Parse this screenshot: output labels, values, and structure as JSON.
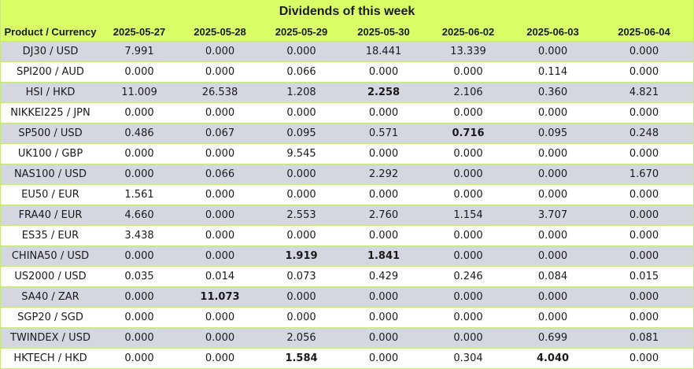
{
  "title": "Dividends of this week",
  "columns": [
    "Product / Currency",
    "2025-05-27",
    "2025-05-28",
    "2025-05-29",
    "2025-05-30",
    "2025-06-02",
    "2025-06-03",
    "2025-06-04"
  ],
  "rows": [
    {
      "product": "DJ30 / USD",
      "values": [
        "7.991",
        "0.000",
        "0.000",
        "18.441",
        "13.339",
        "0.000",
        "0.000"
      ],
      "bold": []
    },
    {
      "product": "SPI200 / AUD",
      "values": [
        "0.000",
        "0.000",
        "0.066",
        "0.000",
        "0.000",
        "0.114",
        "0.000"
      ],
      "bold": []
    },
    {
      "product": "HSI / HKD",
      "values": [
        "11.009",
        "26.538",
        "1.208",
        "2.258",
        "2.106",
        "0.360",
        "4.821"
      ],
      "bold": [
        3
      ]
    },
    {
      "product": "NIKKEI225 / JPN",
      "values": [
        "0.000",
        "0.000",
        "0.000",
        "0.000",
        "0.000",
        "0.000",
        "0.000"
      ],
      "bold": []
    },
    {
      "product": "SP500 / USD",
      "values": [
        "0.486",
        "0.067",
        "0.095",
        "0.571",
        "0.716",
        "0.095",
        "0.248"
      ],
      "bold": [
        4
      ]
    },
    {
      "product": "UK100 / GBP",
      "values": [
        "0.000",
        "0.000",
        "9.545",
        "0.000",
        "0.000",
        "0.000",
        "0.000"
      ],
      "bold": []
    },
    {
      "product": "NAS100 / USD",
      "values": [
        "0.000",
        "0.066",
        "0.000",
        "2.292",
        "0.000",
        "0.000",
        "1.670"
      ],
      "bold": []
    },
    {
      "product": "EU50 / EUR",
      "values": [
        "1.561",
        "0.000",
        "0.000",
        "0.000",
        "0.000",
        "0.000",
        "0.000"
      ],
      "bold": []
    },
    {
      "product": "FRA40 / EUR",
      "values": [
        "4.660",
        "0.000",
        "2.553",
        "2.760",
        "1.154",
        "3.707",
        "0.000"
      ],
      "bold": []
    },
    {
      "product": "ES35 / EUR",
      "values": [
        "3.438",
        "0.000",
        "0.000",
        "0.000",
        "0.000",
        "0.000",
        "0.000"
      ],
      "bold": []
    },
    {
      "product": "CHINA50 / USD",
      "values": [
        "0.000",
        "0.000",
        "1.919",
        "1.841",
        "0.000",
        "0.000",
        "0.000"
      ],
      "bold": [
        2,
        3
      ]
    },
    {
      "product": "US2000 / USD",
      "values": [
        "0.035",
        "0.014",
        "0.073",
        "0.429",
        "0.246",
        "0.084",
        "0.015"
      ],
      "bold": []
    },
    {
      "product": "SA40 / ZAR",
      "values": [
        "0.000",
        "11.073",
        "0.000",
        "0.000",
        "0.000",
        "0.000",
        "0.000"
      ],
      "bold": [
        1
      ]
    },
    {
      "product": "SGP20 / SGD",
      "values": [
        "0.000",
        "0.000",
        "0.000",
        "0.000",
        "0.000",
        "0.000",
        "0.000"
      ],
      "bold": []
    },
    {
      "product": "TWINDEX / USD",
      "values": [
        "0.000",
        "0.000",
        "2.056",
        "0.000",
        "0.000",
        "0.699",
        "0.081"
      ],
      "bold": []
    },
    {
      "product": "HKTECH / HKD",
      "values": [
        "0.000",
        "0.000",
        "1.584",
        "0.000",
        "0.304",
        "4.040",
        "0.000"
      ],
      "bold": [
        2,
        5
      ]
    }
  ]
}
